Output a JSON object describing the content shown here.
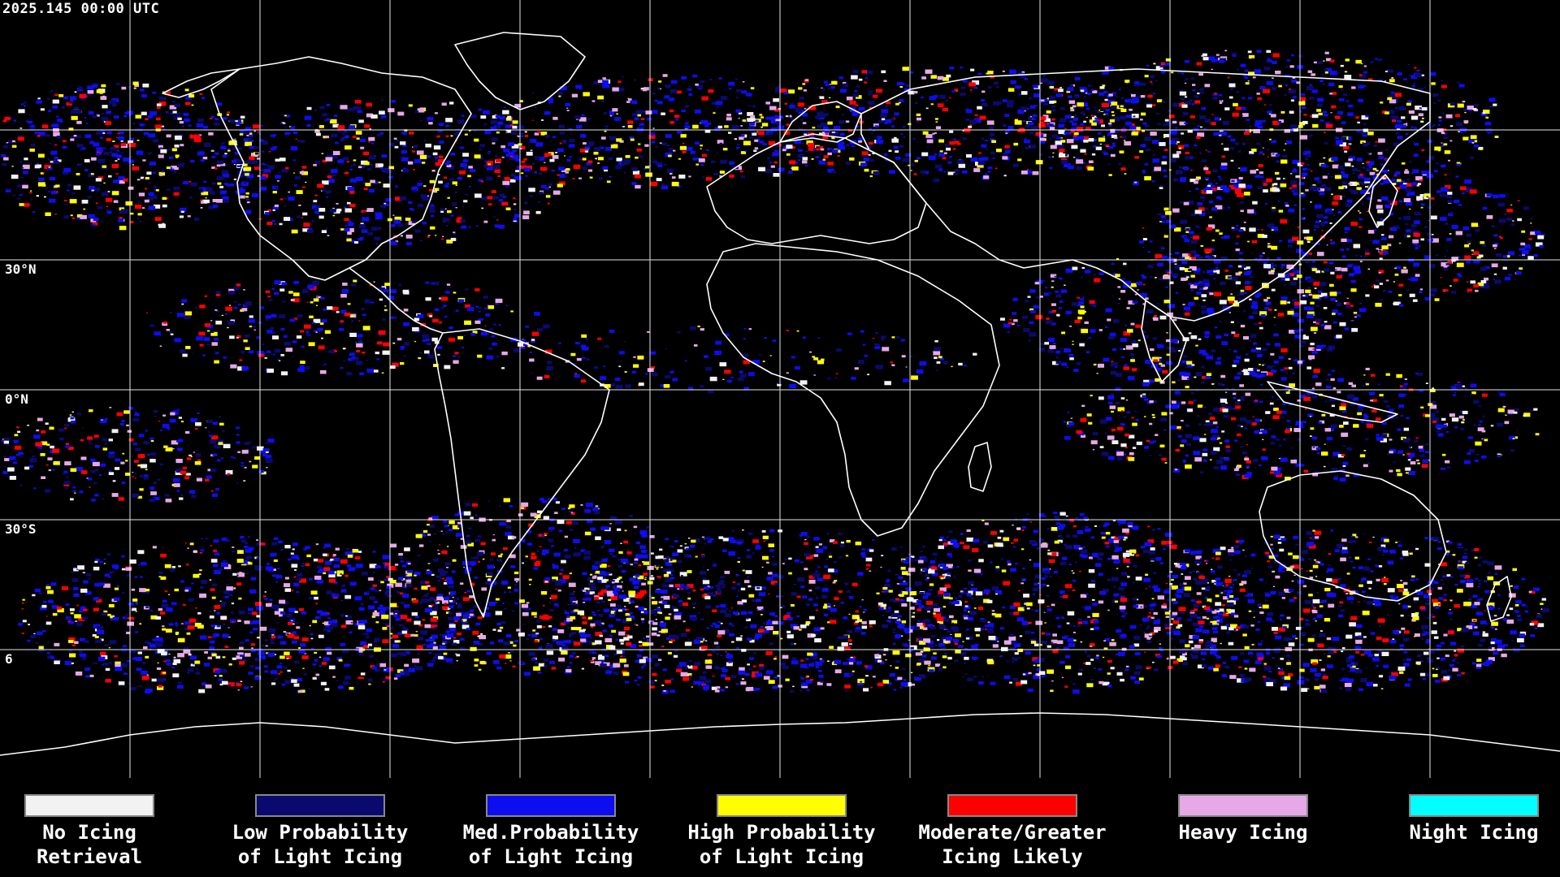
{
  "header": {
    "timestamp": "2025.145 00:00 UTC"
  },
  "map": {
    "type": "global equirectangular icing product map",
    "lat_labels": [
      {
        "key": "n30",
        "text": "30°N"
      },
      {
        "key": "eq",
        "text": "0°N"
      },
      {
        "key": "s30",
        "text": "30°S"
      },
      {
        "key": "s60",
        "text": "6"
      }
    ],
    "grid_color": "#ffffff",
    "coastline_color": "#ffffff",
    "background_color": "#000000"
  },
  "legend": {
    "items": [
      {
        "name": "no-icing-retrieval",
        "line1": "No Icing",
        "line2": "Retrieval",
        "color": "#f2f2f2"
      },
      {
        "name": "low-probability-light-icing",
        "line1": "Low Probability",
        "line2": "of Light Icing",
        "color": "#0a0a6e"
      },
      {
        "name": "med-probability-light-icing",
        "line1": "Med.Probability",
        "line2": "of Light Icing",
        "color": "#0d0df0"
      },
      {
        "name": "high-probability-light-icing",
        "line1": "High Probability",
        "line2": "of Light Icing",
        "color": "#ffff00"
      },
      {
        "name": "moderate-greater-icing-likely",
        "line1": "Moderate/Greater",
        "line2": "Icing Likely",
        "color": "#ff0000"
      },
      {
        "name": "heavy-icing",
        "line1": "Heavy Icing",
        "line2": "",
        "color": "#e6a8e6"
      },
      {
        "name": "night-icing",
        "line1": "Night Icing",
        "line2": "",
        "color": "#00ffff"
      }
    ]
  }
}
